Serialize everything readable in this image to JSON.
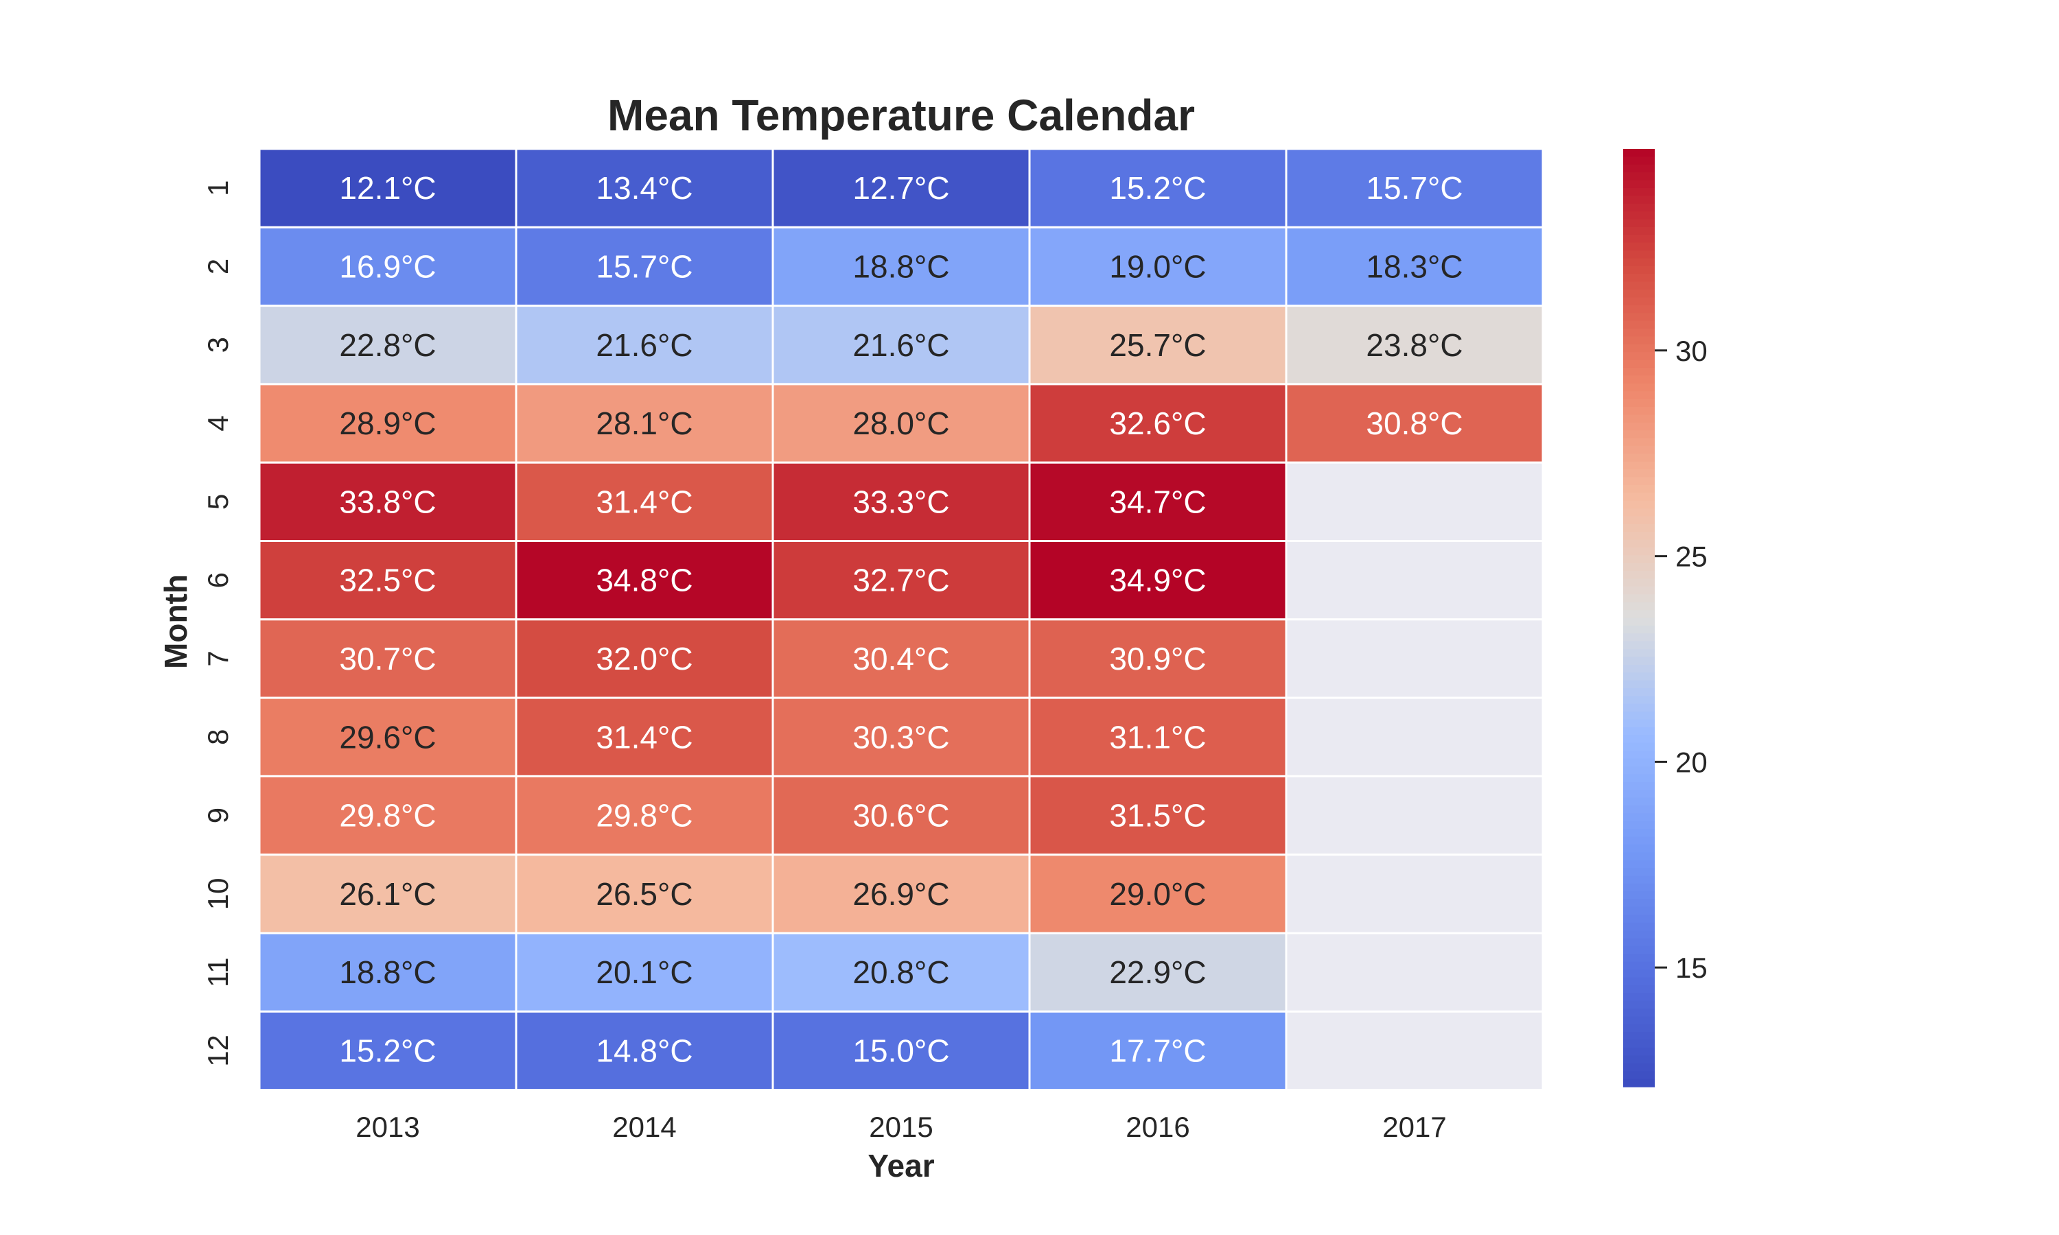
{
  "chart_data": {
    "type": "heatmap",
    "title": "Mean Temperature Calendar",
    "xlabel": "Year",
    "ylabel": "Month",
    "columns": [
      "2013",
      "2014",
      "2015",
      "2016",
      "2017"
    ],
    "rows": [
      "1",
      "2",
      "3",
      "4",
      "5",
      "6",
      "7",
      "8",
      "9",
      "10",
      "11",
      "12"
    ],
    "values": [
      [
        12.1,
        13.4,
        12.7,
        15.2,
        15.7
      ],
      [
        16.9,
        15.7,
        18.8,
        19.0,
        18.3
      ],
      [
        22.8,
        21.6,
        21.6,
        25.7,
        23.8
      ],
      [
        28.9,
        28.1,
        28.0,
        32.6,
        30.8
      ],
      [
        33.8,
        31.4,
        33.3,
        34.7,
        null
      ],
      [
        32.5,
        34.8,
        32.7,
        34.9,
        null
      ],
      [
        30.7,
        32.0,
        30.4,
        30.9,
        null
      ],
      [
        29.6,
        31.4,
        30.3,
        31.1,
        null
      ],
      [
        29.8,
        29.8,
        30.6,
        31.5,
        null
      ],
      [
        26.1,
        26.5,
        26.9,
        29.0,
        null
      ],
      [
        18.8,
        20.1,
        20.8,
        22.9,
        null
      ],
      [
        15.2,
        14.8,
        15.0,
        17.7,
        null
      ]
    ],
    "value_unit": "°C",
    "colormap": "coolwarm",
    "vmin": 12.1,
    "vmax": 34.9,
    "colorbar_ticks": [
      "15",
      "20",
      "25",
      "30"
    ],
    "missing_color": "#eaeaf2",
    "legend": "colorbar right"
  }
}
